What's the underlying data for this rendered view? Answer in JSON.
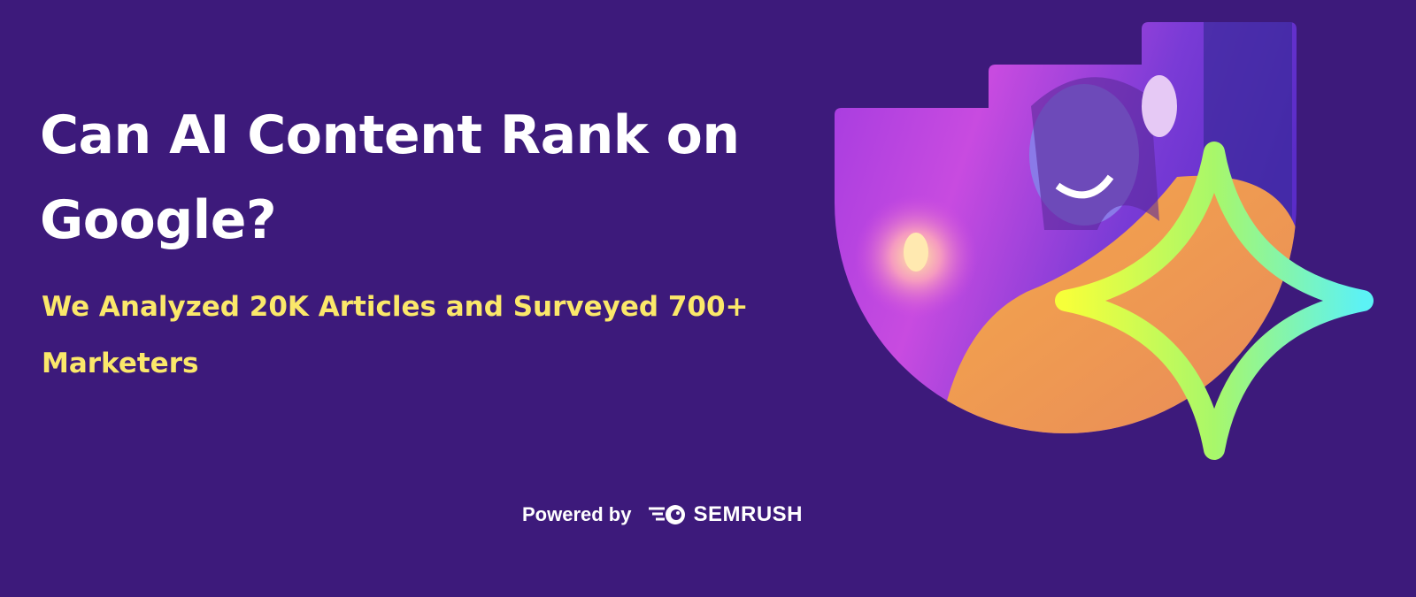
{
  "headline": {
    "title": "Can AI Content Rank on Google?",
    "subtitle": "We Analyzed 20K Articles and Surveyed 700+ Marketers"
  },
  "footer": {
    "powered_by": "Powered by",
    "brand": "SEMRUSH"
  },
  "colors": {
    "background": "#3d1a7b",
    "title": "#ffffff",
    "subtitle": "#fbe86a",
    "star_gradient_start": "#f6ff3a",
    "star_gradient_end": "#5cf2f5"
  },
  "icons": [
    "semrush-logo-icon",
    "sparkle-star-icon"
  ]
}
